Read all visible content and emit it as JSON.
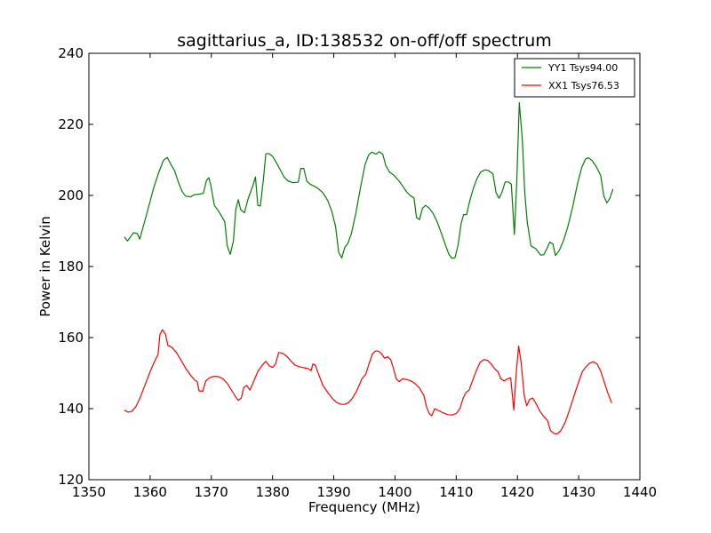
{
  "chart_data": {
    "type": "line",
    "title": "sagittarius_a, ID:138532 on-off/off spectrum",
    "xlabel": "Frequency (MHz)",
    "ylabel": "Power in Kelvin",
    "xlim": [
      1350,
      1440
    ],
    "ylim": [
      120,
      240
    ],
    "xticks": [
      "1350",
      "1360",
      "1370",
      "1380",
      "1390",
      "1400",
      "1410",
      "1420",
      "1430",
      "1440"
    ],
    "yticks": [
      "120",
      "140",
      "160",
      "180",
      "200",
      "220",
      "240"
    ],
    "grid": false,
    "legend_position": "top-right",
    "series": [
      {
        "name": "YY1 Tsys94.00",
        "color": "#008000",
        "points": [
          [
            1355.8,
            188.3
          ],
          [
            1356.3,
            187.2
          ],
          [
            1357.3,
            189.5
          ],
          [
            1357.9,
            189.3
          ],
          [
            1358.3,
            187.7
          ],
          [
            1359.4,
            194.5
          ],
          [
            1360.5,
            201.6
          ],
          [
            1361.4,
            206.4
          ],
          [
            1362.2,
            209.9
          ],
          [
            1362.8,
            210.7
          ],
          [
            1363.5,
            208.4
          ],
          [
            1364.0,
            207.0
          ],
          [
            1364.6,
            203.8
          ],
          [
            1365.2,
            201.2
          ],
          [
            1365.8,
            199.8
          ],
          [
            1366.6,
            199.6
          ],
          [
            1367.2,
            200.2
          ],
          [
            1368.2,
            200.4
          ],
          [
            1368.7,
            200.6
          ],
          [
            1369.2,
            204.2
          ],
          [
            1369.6,
            205.0
          ],
          [
            1369.9,
            203.0
          ],
          [
            1370.5,
            197.2
          ],
          [
            1371.3,
            195.3
          ],
          [
            1372.2,
            192.6
          ],
          [
            1372.6,
            185.8
          ],
          [
            1373.1,
            183.4
          ],
          [
            1373.6,
            187.2
          ],
          [
            1374.0,
            196.0
          ],
          [
            1374.4,
            198.8
          ],
          [
            1374.8,
            196.0
          ],
          [
            1375.4,
            195.1
          ],
          [
            1376.0,
            199.0
          ],
          [
            1376.8,
            202.8
          ],
          [
            1377.2,
            205.2
          ],
          [
            1377.6,
            197.2
          ],
          [
            1378.0,
            197.0
          ],
          [
            1378.5,
            204.3
          ],
          [
            1378.9,
            211.7
          ],
          [
            1379.4,
            211.8
          ],
          [
            1380.0,
            211.0
          ],
          [
            1380.6,
            209.3
          ],
          [
            1381.2,
            207.4
          ],
          [
            1381.9,
            205.1
          ],
          [
            1382.6,
            204.0
          ],
          [
            1383.3,
            203.6
          ],
          [
            1384.2,
            203.7
          ],
          [
            1384.6,
            207.6
          ],
          [
            1385.1,
            207.6
          ],
          [
            1385.6,
            204.0
          ],
          [
            1386.2,
            203.1
          ],
          [
            1386.8,
            202.6
          ],
          [
            1387.4,
            202.0
          ],
          [
            1388.2,
            200.8
          ],
          [
            1389.0,
            198.6
          ],
          [
            1389.7,
            195.4
          ],
          [
            1390.3,
            191.2
          ],
          [
            1390.8,
            184.0
          ],
          [
            1391.3,
            182.4
          ],
          [
            1391.8,
            185.4
          ],
          [
            1392.3,
            186.5
          ],
          [
            1392.9,
            189.4
          ],
          [
            1393.6,
            195.0
          ],
          [
            1394.4,
            202.6
          ],
          [
            1395.1,
            208.6
          ],
          [
            1395.7,
            211.4
          ],
          [
            1396.2,
            212.2
          ],
          [
            1396.9,
            211.6
          ],
          [
            1397.4,
            212.3
          ],
          [
            1398.0,
            211.6
          ],
          [
            1398.5,
            208.4
          ],
          [
            1399.1,
            206.6
          ],
          [
            1399.8,
            205.7
          ],
          [
            1400.5,
            204.4
          ],
          [
            1401.2,
            202.8
          ],
          [
            1401.9,
            201.0
          ],
          [
            1402.6,
            199.8
          ],
          [
            1403.1,
            199.3
          ],
          [
            1403.5,
            193.8
          ],
          [
            1404.0,
            193.2
          ],
          [
            1404.5,
            196.4
          ],
          [
            1405.0,
            197.2
          ],
          [
            1405.6,
            196.4
          ],
          [
            1406.2,
            195.0
          ],
          [
            1406.9,
            192.5
          ],
          [
            1407.6,
            189.2
          ],
          [
            1408.3,
            185.8
          ],
          [
            1408.8,
            183.4
          ],
          [
            1409.3,
            182.3
          ],
          [
            1409.8,
            182.5
          ],
          [
            1410.3,
            186.0
          ],
          [
            1410.8,
            192.0
          ],
          [
            1411.2,
            194.6
          ],
          [
            1411.7,
            194.6
          ],
          [
            1412.2,
            198.4
          ],
          [
            1412.8,
            202.0
          ],
          [
            1413.4,
            204.8
          ],
          [
            1414.0,
            206.6
          ],
          [
            1414.7,
            207.2
          ],
          [
            1415.3,
            207.0
          ],
          [
            1416.0,
            206.0
          ],
          [
            1416.5,
            200.8
          ],
          [
            1417.0,
            199.2
          ],
          [
            1417.5,
            201.0
          ],
          [
            1418.0,
            203.8
          ],
          [
            1418.5,
            203.8
          ],
          [
            1419.0,
            203.2
          ],
          [
            1419.5,
            189.0
          ],
          [
            1419.9,
            204.2
          ],
          [
            1420.3,
            226.1
          ],
          [
            1420.8,
            215.8
          ],
          [
            1421.2,
            200.6
          ],
          [
            1421.6,
            192.6
          ],
          [
            1422.2,
            185.8
          ],
          [
            1423.0,
            185.0
          ],
          [
            1423.8,
            183.2
          ],
          [
            1424.3,
            183.3
          ],
          [
            1424.8,
            185.0
          ],
          [
            1425.3,
            186.9
          ],
          [
            1425.8,
            186.3
          ],
          [
            1426.2,
            183.1
          ],
          [
            1426.8,
            184.4
          ],
          [
            1427.5,
            187.2
          ],
          [
            1428.2,
            191.0
          ],
          [
            1429.0,
            196.6
          ],
          [
            1429.8,
            203.2
          ],
          [
            1430.5,
            207.9
          ],
          [
            1431.1,
            210.2
          ],
          [
            1431.6,
            210.6
          ],
          [
            1432.2,
            209.8
          ],
          [
            1432.9,
            208.0
          ],
          [
            1433.6,
            205.6
          ],
          [
            1434.1,
            199.8
          ],
          [
            1434.6,
            197.9
          ],
          [
            1435.1,
            199.2
          ],
          [
            1435.6,
            201.8
          ]
        ]
      },
      {
        "name": "XX1 Tsys76.53",
        "color": "#ff0000",
        "points": [
          [
            1355.8,
            139.6
          ],
          [
            1356.4,
            139.0
          ],
          [
            1357.0,
            139.2
          ],
          [
            1357.7,
            140.6
          ],
          [
            1358.4,
            143.2
          ],
          [
            1359.2,
            146.8
          ],
          [
            1360.0,
            150.4
          ],
          [
            1360.8,
            153.6
          ],
          [
            1361.3,
            155.2
          ],
          [
            1361.6,
            160.8
          ],
          [
            1362.0,
            162.2
          ],
          [
            1362.5,
            161.0
          ],
          [
            1362.9,
            157.8
          ],
          [
            1363.6,
            157.2
          ],
          [
            1364.3,
            155.8
          ],
          [
            1365.0,
            153.8
          ],
          [
            1365.8,
            151.4
          ],
          [
            1366.6,
            149.4
          ],
          [
            1367.3,
            148.0
          ],
          [
            1367.7,
            147.6
          ],
          [
            1368.0,
            145.0
          ],
          [
            1368.6,
            144.9
          ],
          [
            1369.1,
            147.8
          ],
          [
            1369.8,
            148.8
          ],
          [
            1370.5,
            149.1
          ],
          [
            1371.2,
            149.0
          ],
          [
            1371.9,
            148.4
          ],
          [
            1372.6,
            147.1
          ],
          [
            1373.3,
            145.2
          ],
          [
            1373.9,
            143.5
          ],
          [
            1374.4,
            142.3
          ],
          [
            1374.9,
            143.0
          ],
          [
            1375.3,
            146.0
          ],
          [
            1375.8,
            146.5
          ],
          [
            1376.3,
            145.2
          ],
          [
            1376.9,
            147.6
          ],
          [
            1377.6,
            150.4
          ],
          [
            1378.3,
            152.2
          ],
          [
            1378.9,
            153.3
          ],
          [
            1379.5,
            152.0
          ],
          [
            1380.0,
            151.6
          ],
          [
            1380.5,
            152.6
          ],
          [
            1381.0,
            155.8
          ],
          [
            1381.6,
            155.6
          ],
          [
            1382.3,
            154.8
          ],
          [
            1383.0,
            153.4
          ],
          [
            1383.7,
            152.2
          ],
          [
            1384.5,
            151.7
          ],
          [
            1385.2,
            151.5
          ],
          [
            1385.9,
            151.2
          ],
          [
            1386.3,
            150.7
          ],
          [
            1386.6,
            152.6
          ],
          [
            1387.0,
            152.2
          ],
          [
            1387.5,
            149.8
          ],
          [
            1388.2,
            146.6
          ],
          [
            1389.0,
            144.6
          ],
          [
            1389.8,
            142.8
          ],
          [
            1390.5,
            141.7
          ],
          [
            1391.2,
            141.2
          ],
          [
            1391.8,
            141.2
          ],
          [
            1392.4,
            141.7
          ],
          [
            1393.0,
            142.8
          ],
          [
            1393.7,
            144.8
          ],
          [
            1394.3,
            147.2
          ],
          [
            1394.6,
            148.4
          ],
          [
            1395.2,
            149.6
          ],
          [
            1395.8,
            152.8
          ],
          [
            1396.3,
            155.4
          ],
          [
            1396.8,
            156.2
          ],
          [
            1397.3,
            156.2
          ],
          [
            1397.8,
            155.5
          ],
          [
            1398.3,
            154.2
          ],
          [
            1398.8,
            154.6
          ],
          [
            1399.3,
            153.8
          ],
          [
            1399.8,
            151.0
          ],
          [
            1400.2,
            148.4
          ],
          [
            1400.7,
            147.6
          ],
          [
            1401.2,
            148.4
          ],
          [
            1401.9,
            148.2
          ],
          [
            1402.6,
            147.8
          ],
          [
            1403.3,
            147.0
          ],
          [
            1404.0,
            145.8
          ],
          [
            1404.7,
            143.8
          ],
          [
            1405.2,
            140.2
          ],
          [
            1405.6,
            138.6
          ],
          [
            1406.0,
            138.0
          ],
          [
            1406.5,
            140.0
          ],
          [
            1407.2,
            139.4
          ],
          [
            1407.9,
            138.8
          ],
          [
            1408.6,
            138.3
          ],
          [
            1409.3,
            138.2
          ],
          [
            1410.0,
            138.6
          ],
          [
            1410.6,
            140.0
          ],
          [
            1411.1,
            142.8
          ],
          [
            1411.6,
            144.6
          ],
          [
            1412.1,
            145.2
          ],
          [
            1412.7,
            148.0
          ],
          [
            1413.3,
            150.8
          ],
          [
            1413.9,
            153.0
          ],
          [
            1414.5,
            153.8
          ],
          [
            1415.1,
            153.6
          ],
          [
            1415.7,
            152.6
          ],
          [
            1416.3,
            151.2
          ],
          [
            1416.8,
            150.4
          ],
          [
            1417.3,
            148.4
          ],
          [
            1417.8,
            147.8
          ],
          [
            1418.4,
            148.4
          ],
          [
            1418.9,
            148.7
          ],
          [
            1419.4,
            139.6
          ],
          [
            1419.8,
            150.0
          ],
          [
            1420.2,
            157.6
          ],
          [
            1420.6,
            153.0
          ],
          [
            1421.1,
            143.8
          ],
          [
            1421.5,
            140.8
          ],
          [
            1422.0,
            142.6
          ],
          [
            1422.5,
            143.0
          ],
          [
            1423.1,
            141.2
          ],
          [
            1423.7,
            139.2
          ],
          [
            1424.3,
            137.8
          ],
          [
            1424.9,
            136.7
          ],
          [
            1425.4,
            133.8
          ],
          [
            1426.0,
            133.0
          ],
          [
            1426.5,
            132.9
          ],
          [
            1427.1,
            133.8
          ],
          [
            1427.8,
            136.2
          ],
          [
            1428.5,
            139.6
          ],
          [
            1429.2,
            143.4
          ],
          [
            1429.9,
            147.0
          ],
          [
            1430.6,
            150.4
          ],
          [
            1431.2,
            151.8
          ],
          [
            1431.8,
            152.8
          ],
          [
            1432.4,
            153.2
          ],
          [
            1433.0,
            152.6
          ],
          [
            1433.6,
            150.6
          ],
          [
            1434.2,
            147.4
          ],
          [
            1434.8,
            144.2
          ],
          [
            1435.4,
            141.6
          ]
        ]
      }
    ]
  }
}
